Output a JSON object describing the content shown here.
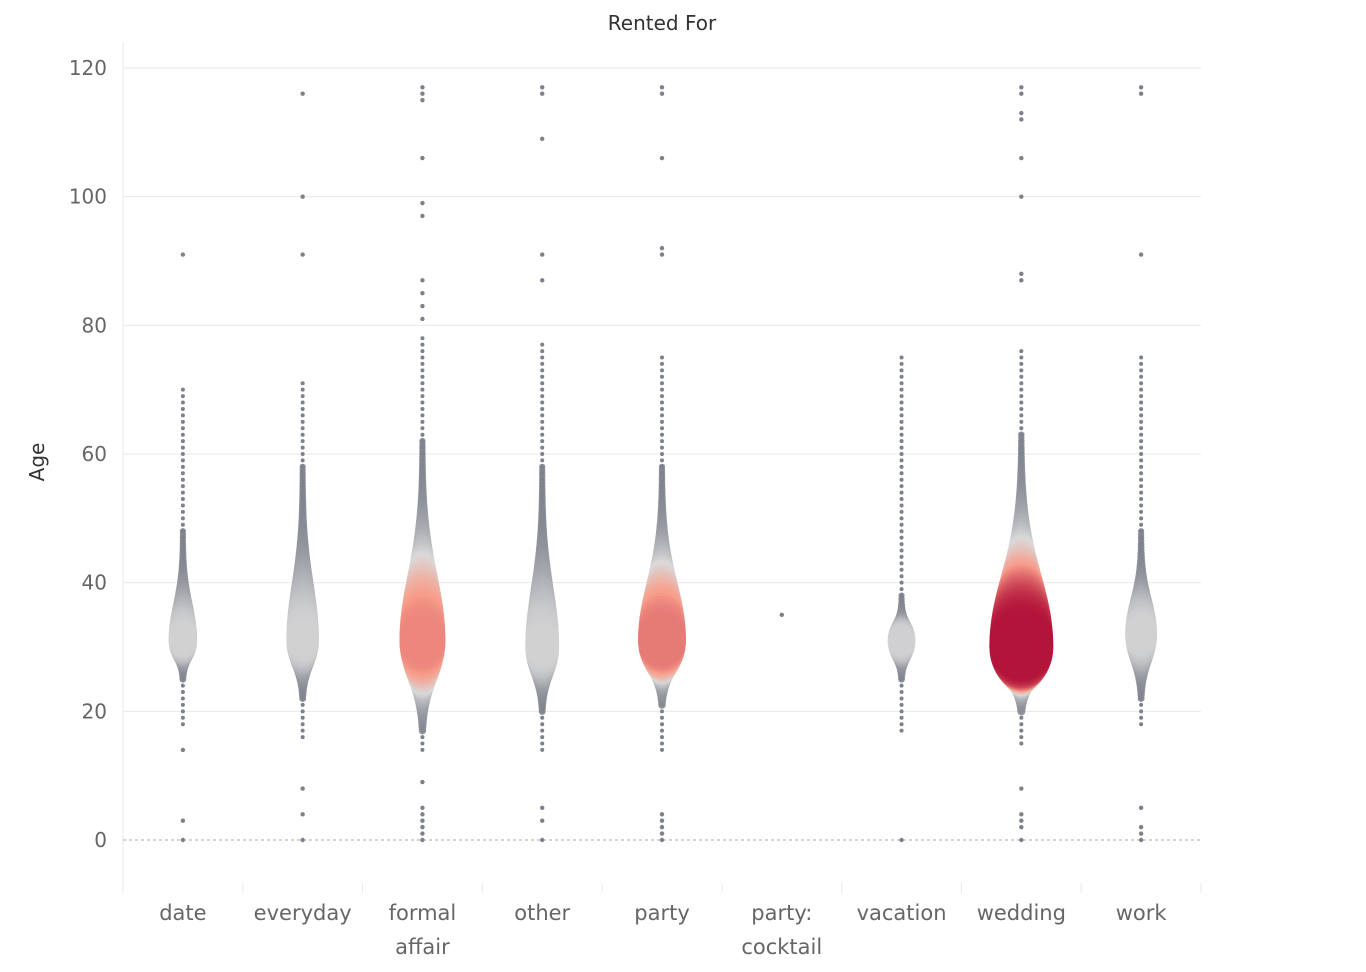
{
  "chart_data": {
    "type": "scatter",
    "title": "Rented For",
    "xlabel": "",
    "ylabel": "Age",
    "ylim": [
      -7,
      122
    ],
    "yticks": [
      0,
      20,
      40,
      60,
      80,
      100,
      120
    ],
    "grid": "horizontal",
    "categories": [
      {
        "label": [
          "date"
        ]
      },
      {
        "label": [
          "everyday"
        ]
      },
      {
        "label": [
          "formal",
          "affair"
        ]
      },
      {
        "label": [
          "other"
        ]
      },
      {
        "label": [
          "party"
        ]
      },
      {
        "label": [
          "party:",
          "cocktail"
        ]
      },
      {
        "label": [
          "vacation"
        ]
      },
      {
        "label": [
          "wedding"
        ]
      },
      {
        "label": [
          "work"
        ]
      }
    ],
    "series": [
      {
        "category": "date",
        "outliers": [
          0,
          3,
          14,
          91
        ],
        "range": [
          18,
          70
        ],
        "dense": [
          25,
          48
        ],
        "peak": 31,
        "intensity": 0.12
      },
      {
        "category": "everyday",
        "outliers": [
          0,
          4,
          8,
          91,
          100,
          116
        ],
        "range": [
          16,
          71
        ],
        "dense": [
          22,
          58
        ],
        "peak": 31,
        "intensity": 0.22
      },
      {
        "category": "formal affair",
        "outliers": [
          0,
          1,
          2,
          3,
          4,
          5,
          9,
          81,
          83,
          85,
          87,
          97,
          99,
          106,
          115,
          116,
          117
        ],
        "range": [
          14,
          78
        ],
        "dense": [
          17,
          62
        ],
        "peak": 31,
        "intensity": 0.55
      },
      {
        "category": "other",
        "outliers": [
          0,
          3,
          5,
          87,
          91,
          109,
          116,
          117
        ],
        "range": [
          14,
          77
        ],
        "dense": [
          20,
          58
        ],
        "peak": 30,
        "intensity": 0.25
      },
      {
        "category": "party",
        "outliers": [
          0,
          1,
          2,
          3,
          4,
          91,
          92,
          106,
          116,
          117
        ],
        "range": [
          14,
          75
        ],
        "dense": [
          21,
          58
        ],
        "peak": 31,
        "intensity": 0.6
      },
      {
        "category": "party: cocktail",
        "outliers": [
          35
        ],
        "range": [
          35,
          35
        ],
        "dense": [
          35,
          35
        ],
        "peak": 35,
        "intensity": 0.0
      },
      {
        "category": "vacation",
        "outliers": [
          0
        ],
        "range": [
          17,
          75
        ],
        "dense": [
          25,
          38
        ],
        "peak": 31,
        "intensity": 0.1
      },
      {
        "category": "wedding",
        "outliers": [
          0,
          2,
          3,
          4,
          8,
          87,
          88,
          100,
          106,
          112,
          113,
          116,
          117
        ],
        "range": [
          15,
          76
        ],
        "dense": [
          20,
          63
        ],
        "peak": 30,
        "intensity": 1.0
      },
      {
        "category": "work",
        "outliers": [
          0,
          1,
          2,
          5,
          91,
          116,
          117
        ],
        "range": [
          18,
          75
        ],
        "dense": [
          22,
          48
        ],
        "peak": 32,
        "intensity": 0.2
      }
    ],
    "colors": {
      "low": "#7d818c",
      "mid": "#d9d9d9",
      "warm": "#f79d8a",
      "high": "#b3143a",
      "grid": "#e9e9e9",
      "zero": "#aaaaaa"
    }
  }
}
